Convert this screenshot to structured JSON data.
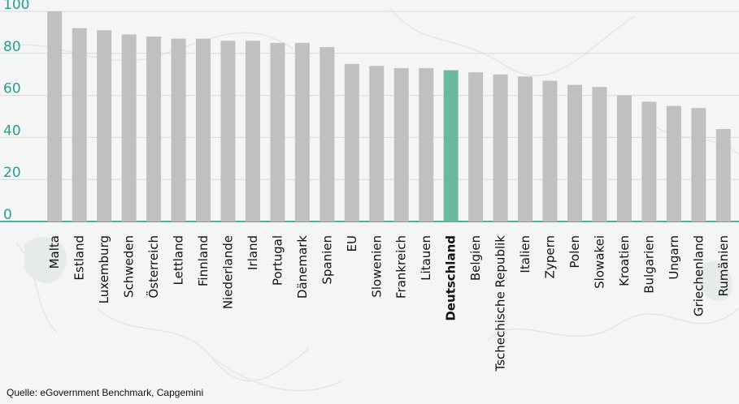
{
  "source": "Quelle: eGovernment Benchmark, Capgemini",
  "colors": {
    "bar": "#c0c0c0",
    "highlight": "#6bb9a1",
    "axis_text": "#2a9d8f",
    "baseline": "#4bb29f",
    "grid": "#d6dcdc"
  },
  "chart_data": {
    "type": "bar",
    "categories": [
      "Malta",
      "Estland",
      "Luxemburg",
      "Schweden",
      "Österreich",
      "Lettland",
      "Finnland",
      "Niederlande",
      "Irland",
      "Portugal",
      "Dänemark",
      "Spanien",
      "EU",
      "Slowenien",
      "Frankreich",
      "Litauen",
      "Deutschland",
      "Belgien",
      "Tschechische Republik",
      "Italien",
      "Zypern",
      "Polen",
      "Slowakei",
      "Kroatien",
      "Bulgarien",
      "Ungarn",
      "Griechenland",
      "Rumänien"
    ],
    "values": [
      100,
      92,
      91,
      89,
      88,
      87,
      87,
      86,
      86,
      85,
      85,
      83,
      75,
      74,
      73,
      73,
      72,
      71,
      70,
      69,
      67,
      65,
      64,
      60,
      57,
      55,
      54,
      44
    ],
    "highlight": "Deutschland",
    "yticks": [
      0,
      20,
      40,
      60,
      80,
      100
    ],
    "ylim": [
      0,
      100
    ],
    "grid": true
  }
}
